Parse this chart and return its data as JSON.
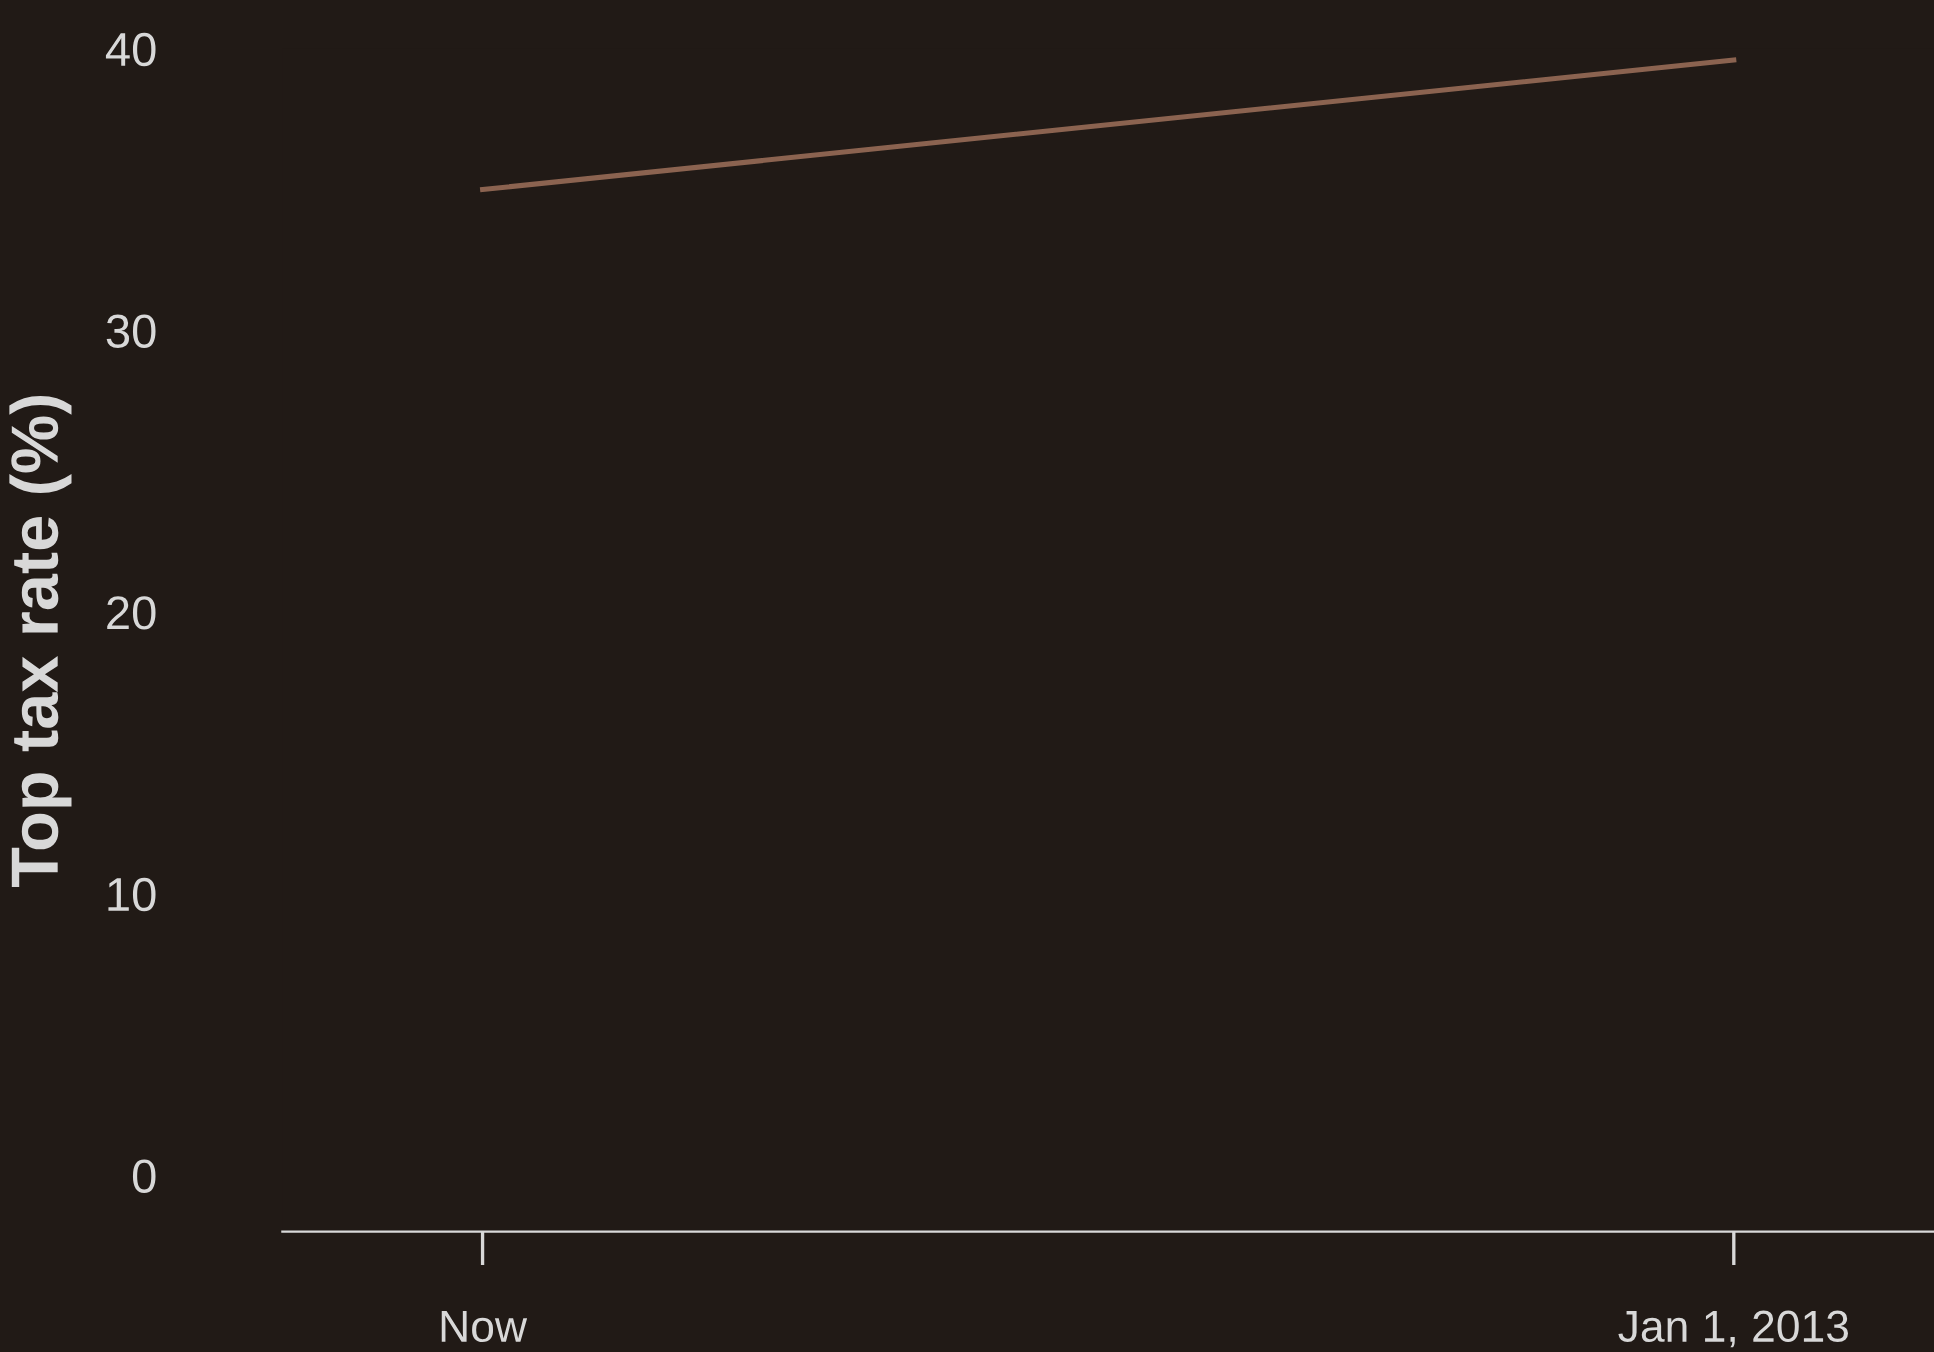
{
  "chart_data": {
    "type": "line",
    "ylabel": "Top tax rate (%)",
    "categories": [
      "Now",
      "Jan 1, 2013"
    ],
    "series": [
      {
        "color": "#8b6350",
        "values": [
          35,
          39.6
        ]
      }
    ],
    "ylim": [
      -2,
      40
    ],
    "yticks": [
      0,
      10,
      20,
      30,
      40
    ],
    "grid": false,
    "legend": false,
    "marker": "none",
    "line_style": "solid"
  }
}
